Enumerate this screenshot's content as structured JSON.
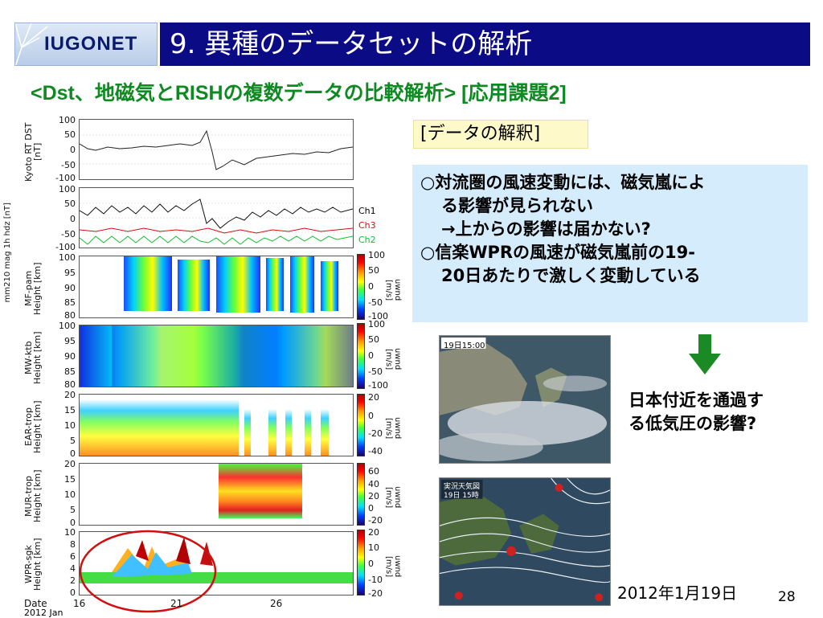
{
  "header": {
    "logo_text": "IUGONET",
    "title": "9. 異種のデータセットの解析"
  },
  "subtitle": "<Dst、地磁気とRISHの複数データの比較解析> [応用課題2]",
  "stack": {
    "outer_label": "mm210 mag 1h hdz [nT]",
    "panels": [
      {
        "label": "Kyoto RT DST [nT]",
        "ticks": [
          "100",
          "50",
          "0",
          "-50",
          "-100"
        ]
      },
      {
        "label": "",
        "ticks": [
          "100",
          "50",
          "0",
          "-50",
          "-100"
        ],
        "legend": [
          {
            "name": "Ch1",
            "color": "#000000"
          },
          {
            "name": "Ch3",
            "color": "#d01010"
          },
          {
            "name": "Ch2",
            "color": "#10c030"
          }
        ]
      },
      {
        "label": "MF-pam Height [km]",
        "ticks": [
          "100",
          "95",
          "90",
          "85",
          "80"
        ],
        "cbar_ticks": [
          "100",
          "50",
          "0",
          "-50",
          "-100"
        ],
        "unit": "uwnd [m/s]"
      },
      {
        "label": "MW-ktb Height [km]",
        "ticks": [
          "100",
          "95",
          "90",
          "85",
          "80"
        ],
        "cbar_ticks": [
          "100",
          "50",
          "0",
          "-50",
          "-100"
        ],
        "unit": "uwnd [m/s]"
      },
      {
        "label": "EAR-trop Height [km]",
        "ticks": [
          "20",
          "15",
          "10",
          "5",
          "0"
        ],
        "cbar_ticks": [
          "20",
          "0",
          "-20",
          "-40"
        ],
        "unit": "uwnd [m/s]"
      },
      {
        "label": "MUR-trop Height [km]",
        "ticks": [
          "20",
          "15",
          "10",
          "5",
          "0"
        ],
        "cbar_ticks": [
          "60",
          "40",
          "20",
          "0",
          "-20"
        ],
        "unit": "uwnd [m/s]"
      },
      {
        "label": "WPR-sgk Height [km]",
        "ticks": [
          "10",
          "8",
          "6",
          "4",
          "2",
          "0"
        ],
        "cbar_ticks": [
          "20",
          "10",
          "0",
          "-10",
          "-20"
        ],
        "unit": "uwnd [m/s]"
      }
    ],
    "x_ticks": [
      "16",
      "21",
      "26"
    ],
    "date_label": "Date",
    "date_year": "2012 Jan"
  },
  "interpretation": {
    "label": "[データの解釈]",
    "lines": [
      "○対流圏の風速変動には、磁気嵐によ",
      "る影響が見られない",
      "→上からの影響は届かない?",
      "○信楽WPRの風速が磁気嵐前の19-",
      "20日あたりで激しく変動している"
    ]
  },
  "maps": {
    "satellite_label": "19日15:00",
    "weather_label1": "実況天気図",
    "weather_label2": "19日 15時"
  },
  "note": {
    "line1": "日本付近を通過す",
    "line2": "る低気圧の影響?"
  },
  "date_caption": "2012年1月19日",
  "page_number": "28"
}
